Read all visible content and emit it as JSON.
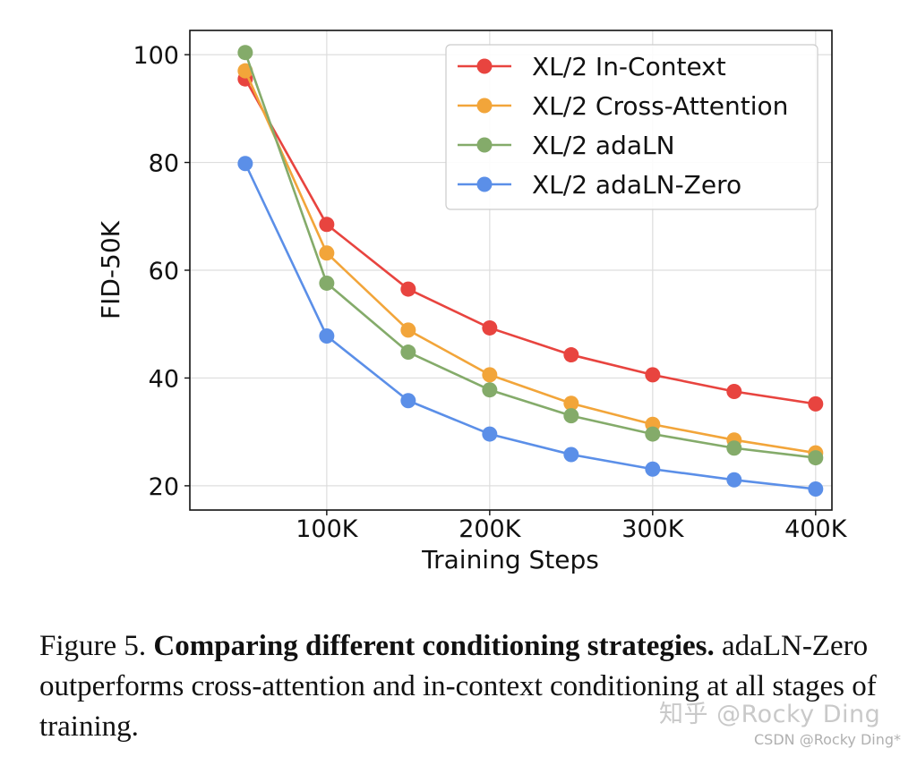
{
  "chart_data": {
    "type": "line",
    "x": [
      50000,
      100000,
      150000,
      200000,
      250000,
      300000,
      350000,
      400000
    ],
    "xticks": [
      100000,
      200000,
      300000,
      400000
    ],
    "xtick_labels": [
      "100K",
      "200K",
      "300K",
      "400K"
    ],
    "xlim": [
      16000,
      410000
    ],
    "yticks": [
      20,
      40,
      60,
      80,
      100
    ],
    "ylim": [
      15.5,
      104.5
    ],
    "xlabel": "Training Steps",
    "ylabel": "FID-50K",
    "grid": true,
    "legend_position": "top-right",
    "series": [
      {
        "name": "XL/2 In-Context",
        "color": "#e8443f",
        "values": [
          95.5,
          68.5,
          56.5,
          49.3,
          44.3,
          40.6,
          37.5,
          35.2
        ]
      },
      {
        "name": "XL/2 Cross-Attention",
        "color": "#f2a53a",
        "values": [
          97.0,
          63.2,
          48.9,
          40.6,
          35.3,
          31.4,
          28.5,
          26.1
        ]
      },
      {
        "name": "XL/2 adaLN",
        "color": "#84ab6a",
        "values": [
          100.4,
          57.6,
          44.8,
          37.8,
          33.0,
          29.6,
          27.0,
          25.2
        ]
      },
      {
        "name": "XL/2 adaLN-Zero",
        "color": "#5b8fe8",
        "values": [
          79.8,
          47.8,
          35.8,
          29.6,
          25.8,
          23.1,
          21.1,
          19.4
        ]
      }
    ]
  },
  "caption": {
    "prefix": "Figure 5. ",
    "bold": "Comparing different conditioning strategies.",
    "text": " adaLN-Zero outperforms cross-attention and in-context conditioning at all stages of training."
  },
  "watermark": {
    "main": "知乎 @Rocky Ding",
    "small": "CSDN @Rocky Ding*"
  }
}
